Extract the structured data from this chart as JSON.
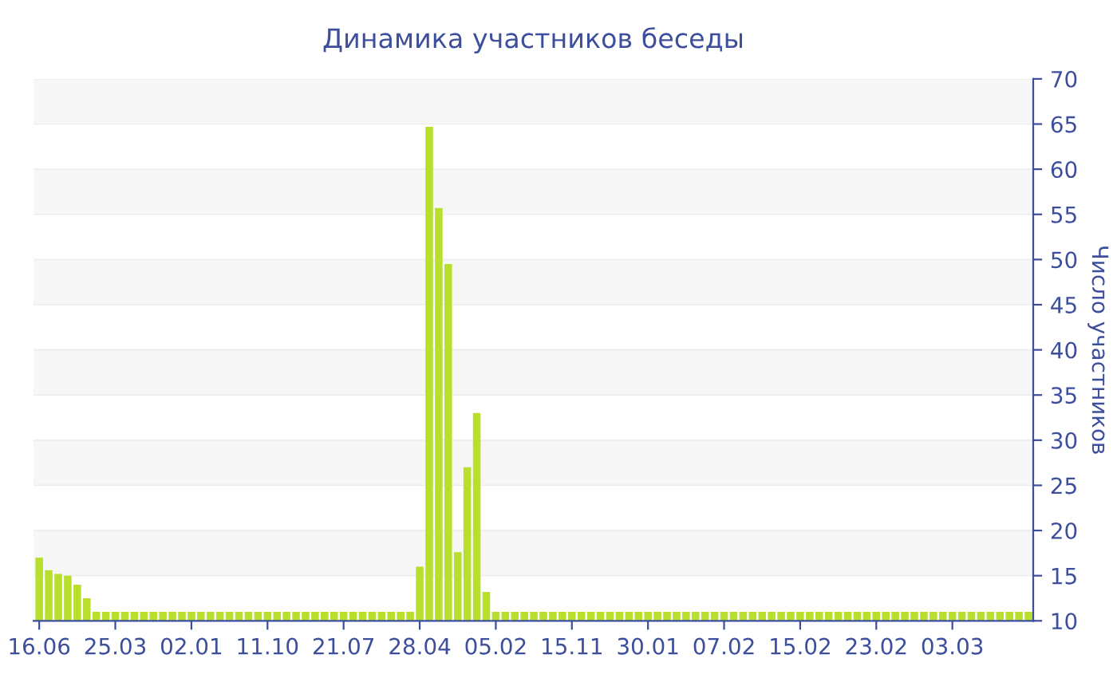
{
  "chart_data": {
    "type": "bar",
    "title": "Динамика участников беседы",
    "ylabel": "Число участников",
    "categories": [
      "16.06",
      null,
      null,
      null,
      null,
      null,
      null,
      null,
      "25.03",
      null,
      null,
      null,
      null,
      null,
      null,
      null,
      "02.01",
      null,
      null,
      null,
      null,
      null,
      null,
      null,
      "11.10",
      null,
      null,
      null,
      null,
      null,
      null,
      null,
      "21.07",
      null,
      null,
      null,
      null,
      null,
      null,
      null,
      "28.04",
      null,
      null,
      null,
      null,
      null,
      null,
      null,
      "05.02",
      null,
      null,
      null,
      null,
      null,
      null,
      null,
      "15.11",
      null,
      null,
      null,
      null,
      null,
      null,
      null,
      "30.01",
      null,
      null,
      null,
      null,
      null,
      null,
      null,
      "07.02",
      null,
      null,
      null,
      null,
      null,
      null,
      null,
      "15.02",
      null,
      null,
      null,
      null,
      null,
      null,
      null,
      "23.02",
      null,
      null,
      null,
      null,
      null,
      null,
      null,
      "03.03",
      null,
      null,
      null,
      null,
      null,
      null,
      null,
      null
    ],
    "values": [
      17,
      15.6,
      15.2,
      15,
      14,
      12.5,
      11,
      11,
      11,
      11,
      11,
      11,
      11,
      11,
      11,
      11,
      11,
      11,
      11,
      11,
      11,
      11,
      11,
      11,
      11,
      11,
      11,
      11,
      11,
      11,
      11,
      11,
      11,
      11,
      11,
      11,
      11,
      11,
      11,
      11,
      16,
      64.7,
      55.7,
      49.5,
      17.6,
      27,
      33,
      13.2,
      11,
      11,
      11,
      11,
      11,
      11,
      11,
      11,
      11,
      11,
      11,
      11,
      11,
      11,
      11,
      11,
      11,
      11,
      11,
      11,
      11,
      11,
      11,
      11,
      11,
      11,
      11,
      11,
      11,
      11,
      11,
      11,
      11,
      11,
      11,
      11,
      11,
      11,
      11,
      11,
      11,
      11,
      11,
      11,
      11,
      11,
      11,
      11,
      11,
      11,
      11,
      11,
      11,
      11,
      11,
      11,
      11
    ],
    "color": "#b8df2c",
    "ylim": [
      10,
      70
    ],
    "yticks": [
      10,
      15,
      20,
      25,
      30,
      35,
      40,
      45,
      50,
      55,
      60,
      65,
      70
    ],
    "grid": "y"
  }
}
